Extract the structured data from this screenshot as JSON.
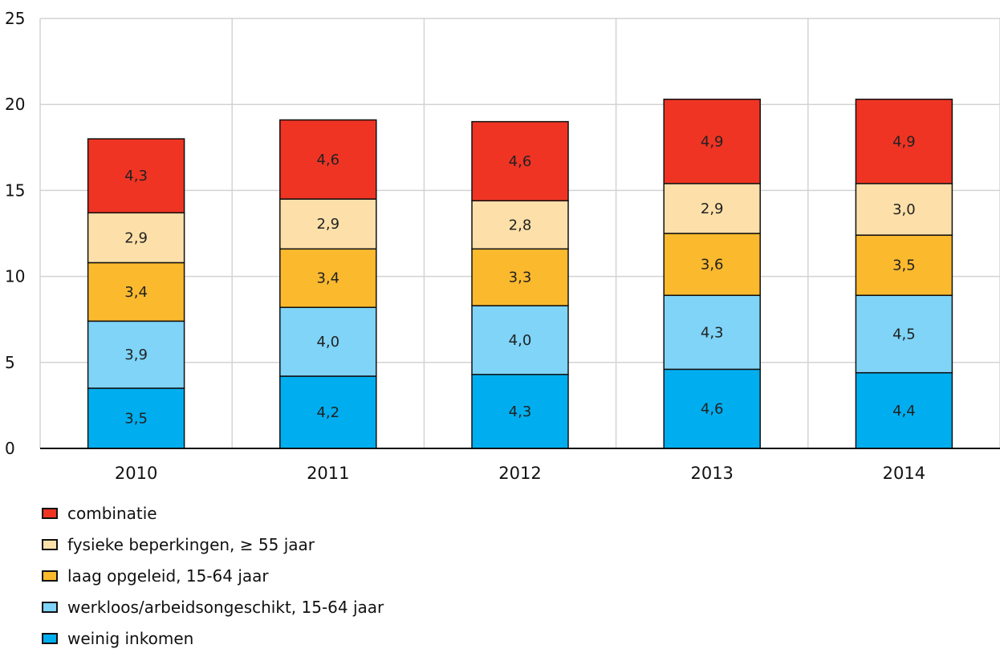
{
  "chart_data": {
    "type": "bar",
    "stacked": true,
    "categories": [
      "2010",
      "2011",
      "2012",
      "2013",
      "2014"
    ],
    "ylim": [
      0,
      25
    ],
    "yticks": [
      0,
      5,
      10,
      15,
      20,
      25
    ],
    "ytick_labels": [
      "0",
      "5",
      "10",
      "15",
      "20",
      "25"
    ],
    "grid": true,
    "legend_position": "bottom-left",
    "series": [
      {
        "name": "weinig inkomen",
        "color": "#00aeef",
        "values": [
          3.5,
          4.2,
          4.3,
          4.6,
          4.4
        ],
        "labels": [
          "3,5",
          "4,2",
          "4,3",
          "4,6",
          "4,4"
        ]
      },
      {
        "name": "werkloos/arbeidsongeschikt, 15-64 jaar",
        "color": "#7fd4f8",
        "values": [
          3.9,
          4.0,
          4.0,
          4.3,
          4.5
        ],
        "labels": [
          "3,9",
          "4,0",
          "4,0",
          "4,3",
          "4,5"
        ]
      },
      {
        "name": "laag opgeleid, 15-64 jaar",
        "color": "#fbb92e",
        "values": [
          3.4,
          3.4,
          3.3,
          3.6,
          3.5
        ],
        "labels": [
          "3,4",
          "3,4",
          "3,3",
          "3,6",
          "3,5"
        ]
      },
      {
        "name": "fysieke beperkingen, ≥ 55 jaar",
        "color": "#fde0a9",
        "values": [
          2.9,
          2.9,
          2.8,
          2.9,
          3.0
        ],
        "labels": [
          "2,9",
          "2,9",
          "2,8",
          "2,9",
          "3,0"
        ]
      },
      {
        "name": "combinatie",
        "color": "#ef3424",
        "values": [
          4.3,
          4.6,
          4.6,
          4.9,
          4.9
        ],
        "labels": [
          "4,3",
          "4,6",
          "4,6",
          "4,9",
          "4,9"
        ]
      }
    ]
  },
  "legend": {
    "items": [
      {
        "label": "combinatie",
        "color": "#ef3424"
      },
      {
        "label": "fysieke beperkingen, ≥ 55 jaar",
        "color": "#fde0a9"
      },
      {
        "label": "laag opgeleid, 15-64 jaar",
        "color": "#fbb92e"
      },
      {
        "label": "werkloos/arbeidsongeschikt, 15-64 jaar",
        "color": "#7fd4f8"
      },
      {
        "label": "weinig inkomen",
        "color": "#00aeef"
      }
    ]
  }
}
